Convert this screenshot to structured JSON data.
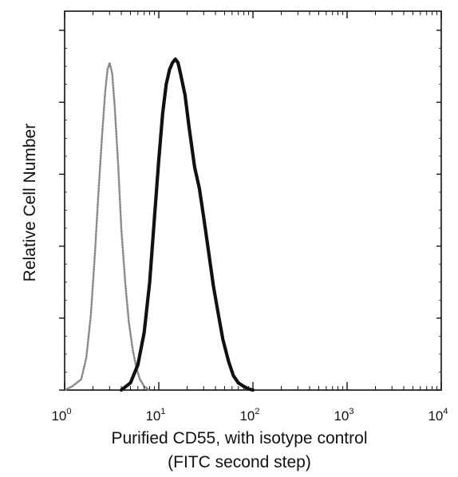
{
  "chart_data": {
    "type": "line",
    "title": "",
    "xlabel_lines": [
      "Purified CD55, with isotype control",
      "(FITC second step)"
    ],
    "ylabel": "Relative Cell Number",
    "x_scale": "log",
    "xlim": [
      1,
      10000
    ],
    "ylim": [
      0,
      100
    ],
    "y_tick_labels_shown": false,
    "grid": false,
    "legend": "none",
    "x_ticks": [
      {
        "value": 1,
        "base": "10",
        "exp": "0"
      },
      {
        "value": 10,
        "base": "10",
        "exp": "1"
      },
      {
        "value": 100,
        "base": "10",
        "exp": "2"
      },
      {
        "value": 1000,
        "base": "10",
        "exp": "3"
      },
      {
        "value": 10000,
        "base": "10",
        "exp": "4"
      }
    ],
    "series": [
      {
        "role": "isotype control",
        "style": "dotted",
        "color": "#8a8a8a",
        "x": [
          1.0,
          1.2,
          1.5,
          1.7,
          1.9,
          2.1,
          2.3,
          2.5,
          2.7,
          2.85,
          3.0,
          3.2,
          3.4,
          3.7,
          4.0,
          4.4,
          4.8,
          5.3,
          5.8,
          6.3,
          7.0,
          8.0
        ],
        "y": [
          0,
          1,
          3,
          9,
          21,
          38,
          56,
          71,
          83,
          89,
          91,
          88,
          79,
          63,
          45,
          30,
          19,
          11,
          6,
          3,
          1,
          0
        ]
      },
      {
        "role": "purified CD55",
        "style": "solid",
        "color": "#111111",
        "x": [
          4.0,
          5.0,
          6.0,
          7.0,
          8.0,
          9.0,
          10.0,
          11.0,
          12.0,
          13.0,
          14.0,
          15.0,
          16.0,
          17.0,
          19.0,
          21.0,
          24.0,
          27.0,
          30.0,
          34.0,
          38.0,
          43.0,
          48.0,
          55.0,
          62.0,
          70.0,
          80.0,
          90.0,
          100.0
        ],
        "y": [
          0,
          2,
          7,
          16,
          30,
          48,
          64,
          77,
          85,
          89,
          91,
          92,
          91,
          88,
          82,
          73,
          62,
          56,
          48,
          38,
          29,
          21,
          14,
          8,
          4,
          2,
          1,
          0.3,
          0
        ]
      }
    ]
  }
}
